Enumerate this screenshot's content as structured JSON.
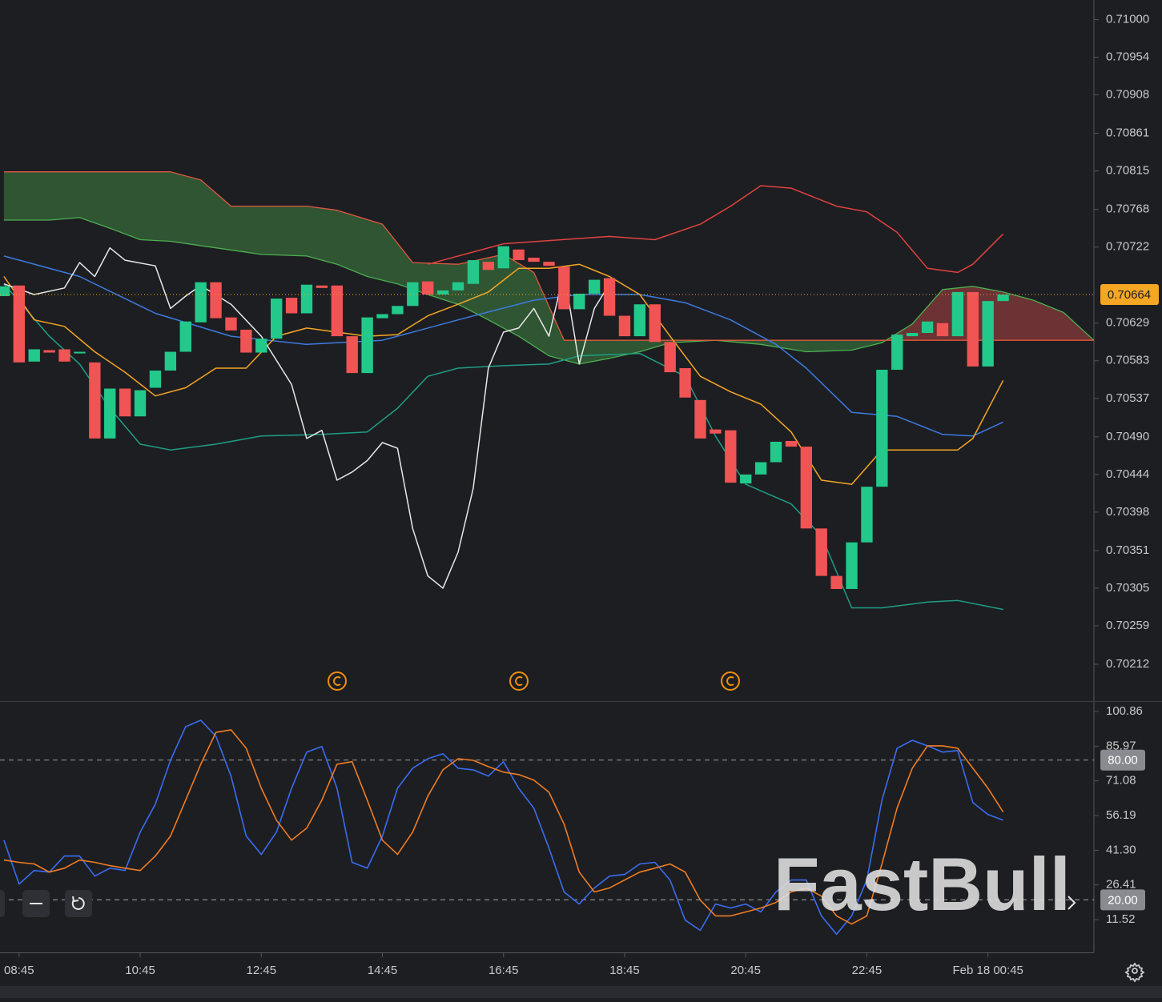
{
  "chart_data": [
    {
      "type": "candlestick",
      "up_color": "#22c98b",
      "down_color": "#f05454",
      "xlim": [
        -0.26,
        72.0
      ],
      "xticks": [
        {
          "value": 1,
          "label": "08:45"
        },
        {
          "value": 9,
          "label": "10:45"
        },
        {
          "value": 17,
          "label": "12:45"
        },
        {
          "value": 25,
          "label": "14:45"
        },
        {
          "value": 33,
          "label": "16:45"
        },
        {
          "value": 41,
          "label": "18:45"
        },
        {
          "value": 49,
          "label": "20:45"
        },
        {
          "value": 57,
          "label": "22:45"
        },
        {
          "value": 65,
          "label": "Feb 18 00:45"
        }
      ],
      "ylim": [
        0.70167,
        0.71024
      ],
      "yticks": [
        {
          "value": 0.71,
          "label": "0.71000"
        },
        0.70954,
        0.70908,
        0.70861,
        0.70815,
        0.70768,
        0.70722,
        0.70629,
        0.70583,
        0.70537,
        {
          "value": 0.7049,
          "label": "0.70490"
        },
        0.70444,
        0.70398,
        0.70351,
        0.70305,
        0.70259,
        0.70212
      ],
      "current_price": 0.70664,
      "current_price_color": "#f5a623",
      "open": [
        0.70662,
        0.70675,
        0.70582,
        0.70596,
        0.70597,
        0.70592,
        0.70581,
        0.70488,
        0.70549,
        0.70515,
        0.7055,
        0.70571,
        0.70594,
        0.7063,
        0.70679,
        0.70636,
        0.70621,
        0.70593,
        0.7061,
        0.7066,
        0.70641,
        0.70675,
        0.70675,
        0.70613,
        0.70568,
        0.70635,
        0.7064,
        0.7065,
        0.7068,
        0.70664,
        0.70669,
        0.70677,
        0.70704,
        0.70696,
        0.70719,
        0.70709,
        0.70704,
        0.70698,
        0.70646,
        0.70665,
        0.70684,
        0.70638,
        0.70613,
        0.70652,
        0.70606,
        0.70574,
        0.70535,
        0.70499,
        0.70498,
        0.70433,
        0.70444,
        0.70459,
        0.70485,
        0.70478,
        0.70378,
        0.7032,
        0.70304,
        0.70361,
        0.70429,
        0.70572,
        0.70613,
        0.70617,
        0.70629,
        0.70613,
        0.70667,
        0.70576,
        0.70656
      ],
      "high": [
        0.70691,
        0.70686,
        0.70633,
        0.70608,
        0.70601,
        0.70608,
        0.70584,
        0.70552,
        0.70552,
        0.70549,
        0.70574,
        0.70597,
        0.70638,
        0.70682,
        0.70686,
        0.70652,
        0.70633,
        0.70615,
        0.70667,
        0.7067,
        0.70682,
        0.7068,
        0.70677,
        0.70617,
        0.70642,
        0.70647,
        0.70693,
        0.70686,
        0.70691,
        0.70677,
        0.70691,
        0.70726,
        0.70721,
        0.70726,
        0.70764,
        0.7074,
        0.70735,
        0.70701,
        0.70677,
        0.70686,
        0.70686,
        0.70657,
        0.70657,
        0.7066,
        0.70611,
        0.70579,
        0.7055,
        0.70515,
        0.70501,
        0.70591,
        0.70542,
        0.7051,
        0.70594,
        0.70483,
        0.7038,
        0.70427,
        0.70364,
        0.70432,
        0.70579,
        0.70674,
        0.70623,
        0.70644,
        0.70635,
        0.7067,
        0.70693,
        0.7066,
        0.70667
      ],
      "low": [
        0.70652,
        0.70574,
        0.70513,
        0.70584,
        0.70576,
        0.70564,
        0.70474,
        0.70476,
        0.70459,
        0.70512,
        0.7054,
        0.70566,
        0.70589,
        0.70628,
        0.70628,
        0.70556,
        0.70574,
        0.70589,
        0.70608,
        0.70638,
        0.70638,
        0.70667,
        0.70605,
        0.70564,
        0.70543,
        0.70633,
        0.70638,
        0.70647,
        0.70635,
        0.7066,
        0.70667,
        0.70672,
        0.70691,
        0.70682,
        0.70701,
        0.70699,
        0.70696,
        0.70642,
        0.70638,
        0.7066,
        0.70635,
        0.70586,
        0.70608,
        0.70582,
        0.70566,
        0.70527,
        0.70481,
        0.70427,
        0.7042,
        0.70427,
        0.70417,
        0.70455,
        0.70457,
        0.70369,
        0.70315,
        0.70288,
        0.70276,
        0.70359,
        0.70427,
        0.7056,
        0.7061,
        0.70592,
        0.70594,
        0.70594,
        0.70574,
        0.70556,
        0.70647
      ],
      "close": [
        0.70674,
        0.70581,
        0.70597,
        0.70593,
        0.70582,
        0.70594,
        0.70488,
        0.70549,
        0.70515,
        0.70547,
        0.70571,
        0.70594,
        0.70631,
        0.70679,
        0.70635,
        0.7062,
        0.70593,
        0.7061,
        0.70659,
        0.70641,
        0.70676,
        0.70672,
        0.70613,
        0.70568,
        0.70636,
        0.7064,
        0.7065,
        0.70679,
        0.70664,
        0.70669,
        0.70679,
        0.70706,
        0.70694,
        0.70723,
        0.70706,
        0.70704,
        0.70699,
        0.70646,
        0.70665,
        0.70682,
        0.70638,
        0.70613,
        0.70652,
        0.70606,
        0.70569,
        0.70538,
        0.70488,
        0.70494,
        0.70434,
        0.70444,
        0.70459,
        0.70484,
        0.70478,
        0.70378,
        0.7032,
        0.70304,
        0.70361,
        0.70429,
        0.70572,
        0.70615,
        0.70617,
        0.70631,
        0.70613,
        0.70667,
        0.70576,
        0.70656,
        0.70664
      ],
      "cloud": {
        "up_fill": "rgba(76,175,80,0.38)",
        "down_fill": "rgba(239,83,80,0.38)",
        "span_a": {
          "color": "#4caf50",
          "x": [
            0,
            3,
            5,
            7,
            9,
            11,
            14,
            17,
            20,
            22,
            24,
            26,
            28,
            30,
            32,
            34,
            36,
            38,
            40,
            42,
            44,
            47,
            50,
            53,
            56,
            58,
            60,
            62,
            64,
            66,
            68,
            70,
            72
          ],
          "values": [
            0.70755,
            0.70755,
            0.70758,
            0.70745,
            0.70731,
            0.70729,
            0.70721,
            0.70713,
            0.70711,
            0.70701,
            0.70686,
            0.70677,
            0.70664,
            0.70652,
            0.70633,
            0.70613,
            0.70589,
            0.70579,
            0.70586,
            0.70594,
            0.70605,
            0.70608,
            0.70603,
            0.70594,
            0.70596,
            0.70605,
            0.70628,
            0.7067,
            0.70674,
            0.70667,
            0.70657,
            0.70642,
            0.70608
          ]
        },
        "span_b": {
          "color": "#e0583f",
          "x": [
            0,
            11,
            13,
            15,
            20,
            22,
            25,
            27,
            30,
            33,
            35,
            37,
            72
          ],
          "values": [
            0.70814,
            0.70814,
            0.70804,
            0.70772,
            0.70772,
            0.70767,
            0.7075,
            0.70703,
            0.70701,
            0.70713,
            0.70691,
            0.70608,
            0.70608
          ]
        }
      },
      "lines": [
        {
          "color": "#e0433f",
          "x": [
            28,
            33,
            40,
            43,
            46,
            48,
            50,
            52,
            55,
            57,
            59,
            61,
            63,
            64,
            66
          ],
          "values": [
            0.70701,
            0.70726,
            0.70735,
            0.70731,
            0.7075,
            0.70772,
            0.70797,
            0.70794,
            0.70772,
            0.70765,
            0.7074,
            0.70696,
            0.70691,
            0.70701,
            0.70738
          ]
        },
        {
          "color": "#3d7be0",
          "x": [
            0,
            5,
            10,
            15,
            20,
            25,
            30,
            35,
            38,
            42,
            45,
            48,
            51,
            53,
            56,
            59,
            62,
            64,
            66
          ],
          "values": [
            0.70711,
            0.70686,
            0.70641,
            0.70613,
            0.70603,
            0.70608,
            0.70633,
            0.70657,
            0.70664,
            0.70664,
            0.70654,
            0.70633,
            0.70603,
            0.70574,
            0.7052,
            0.70515,
            0.70493,
            0.70491,
            0.70508
          ]
        },
        {
          "color": "#1f9e86",
          "x": [
            0,
            3,
            5,
            7,
            9,
            11,
            14,
            17,
            21,
            24,
            26,
            28,
            30,
            33,
            36,
            38,
            42,
            45,
            47,
            49,
            52,
            54,
            56,
            58,
            61,
            63,
            66
          ],
          "values": [
            0.70677,
            0.70613,
            0.70579,
            0.70525,
            0.70481,
            0.70474,
            0.70481,
            0.70491,
            0.70493,
            0.70496,
            0.70525,
            0.70564,
            0.70574,
            0.70577,
            0.70579,
            0.70589,
            0.70592,
            0.70564,
            0.70491,
            0.70432,
            0.70408,
            0.70369,
            0.70281,
            0.70281,
            0.70288,
            0.7029,
            0.70279
          ]
        },
        {
          "color": "#f5a623",
          "x": [
            0,
            2,
            4,
            6,
            8,
            10,
            12,
            14,
            16,
            18,
            20,
            22,
            24,
            26,
            28,
            30,
            32,
            34,
            36,
            38,
            40,
            42,
            44,
            46,
            48,
            50,
            52,
            54,
            56,
            58,
            60,
            63,
            64,
            66
          ],
          "values": [
            0.70686,
            0.70633,
            0.70625,
            0.70594,
            0.70569,
            0.7054,
            0.7055,
            0.70574,
            0.70574,
            0.70613,
            0.70623,
            0.70618,
            0.70613,
            0.70615,
            0.70638,
            0.70652,
            0.70667,
            0.70696,
            0.70696,
            0.70701,
            0.70686,
            0.70664,
            0.70613,
            0.70564,
            0.70545,
            0.7053,
            0.70496,
            0.70437,
            0.70432,
            0.70474,
            0.70474,
            0.70474,
            0.70488,
            0.70559
          ]
        },
        {
          "color": "#e8e8e8",
          "x": [
            0,
            2,
            4,
            5,
            6,
            7,
            8,
            10,
            11,
            12,
            13,
            15,
            17,
            19,
            20,
            21,
            22,
            23,
            24,
            25,
            26,
            27,
            28,
            29,
            30,
            31,
            32,
            33,
            34,
            35,
            36,
            37,
            38,
            39,
            40
          ],
          "values": [
            0.70677,
            0.70664,
            0.70672,
            0.70703,
            0.70686,
            0.70721,
            0.70706,
            0.70699,
            0.70647,
            0.70662,
            0.70675,
            0.70652,
            0.70613,
            0.70554,
            0.70488,
            0.70498,
            0.70437,
            0.70447,
            0.70461,
            0.70483,
            0.70476,
            0.70378,
            0.7032,
            0.70305,
            0.70349,
            0.70427,
            0.70574,
            0.70618,
            0.70623,
            0.70647,
            0.70613,
            0.70691,
            0.70579,
            0.70647,
            0.70677
          ]
        }
      ]
    },
    {
      "type": "line",
      "ylim": [
        -2.55,
        105.32
      ],
      "yticks": [
        100.86,
        85.97,
        71.08,
        56.19,
        {
          "value": 41.3,
          "label": "41.30"
        },
        26.41,
        11.52
      ],
      "levels": [
        {
          "value": 80,
          "label": "80.00"
        },
        {
          "value": 20,
          "label": "20.00"
        }
      ],
      "series": [
        {
          "color": "#3a6df0",
          "values": [
            45.6,
            26.8,
            32.6,
            31.9,
            38.8,
            38.8,
            30.2,
            33.6,
            32.6,
            49.1,
            61.1,
            79.9,
            94.3,
            97.1,
            90.2,
            73.1,
            47.4,
            39.5,
            49.1,
            67.9,
            83.4,
            85.8,
            67.9,
            36.1,
            33.6,
            47.4,
            67.9,
            76.5,
            80.6,
            82.7,
            76.5,
            75.8,
            73.1,
            79.3,
            67.9,
            59.4,
            42.2,
            23.4,
            18.2,
            25.1,
            30.2,
            30.9,
            35.4,
            36.1,
            28.5,
            11.3,
            6.9,
            18.2,
            16.5,
            18.2,
            14.8,
            23.4,
            28.5,
            28.5,
            13.1,
            5.2,
            13.1,
            28.5,
            62.8,
            85.1,
            88.5,
            86.1,
            83.4,
            84.1,
            61.8,
            56.6,
            54.2
          ]
        },
        {
          "color": "#f07c22",
          "values": [
            37.1,
            36.1,
            35.4,
            31.9,
            33.6,
            37.1,
            36.1,
            34.7,
            33.6,
            32.6,
            38.8,
            47.4,
            62.8,
            78.2,
            91.9,
            93.0,
            85.1,
            67.9,
            54.2,
            45.6,
            50.8,
            62.8,
            78.2,
            79.3,
            62.8,
            45.6,
            39.5,
            49.1,
            64.5,
            75.8,
            80.6,
            79.9,
            77.2,
            74.8,
            73.8,
            71.4,
            66.2,
            52.5,
            31.9,
            23.4,
            25.1,
            28.5,
            31.9,
            33.6,
            35.4,
            31.9,
            19.9,
            13.1,
            13.1,
            14.8,
            16.5,
            18.9,
            23.4,
            25.1,
            21.6,
            13.1,
            9.6,
            13.1,
            35.4,
            59.4,
            76.5,
            86.1,
            86.1,
            85.1,
            76.5,
            67.9,
            57.7
          ]
        }
      ]
    }
  ],
  "watermark": "FastBull"
}
